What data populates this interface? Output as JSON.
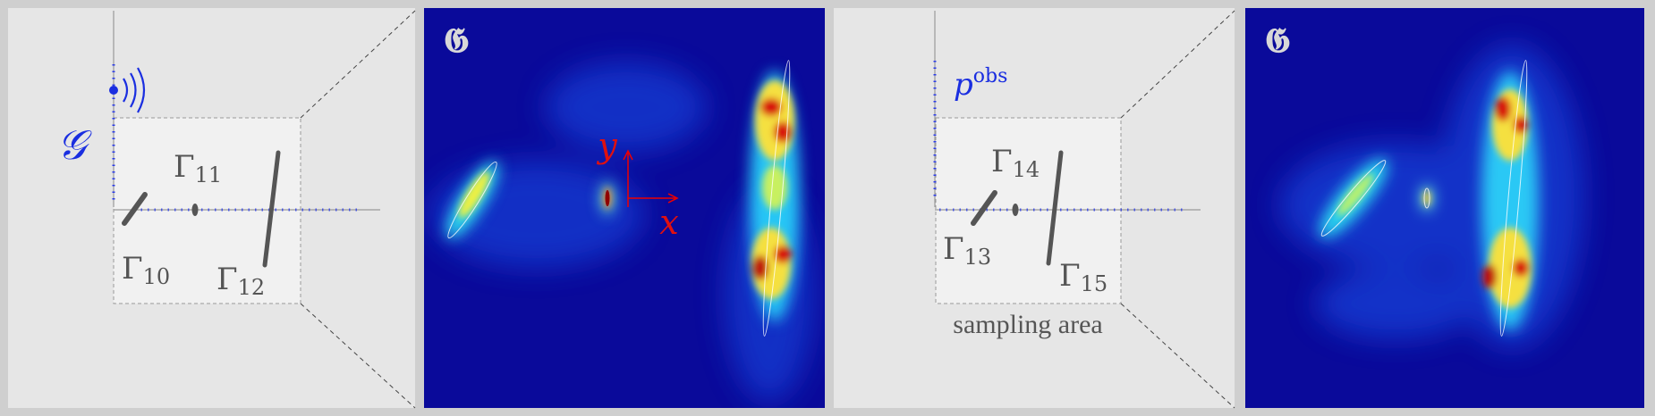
{
  "panel_left": {
    "source_label": "𝒢",
    "obstacles": [
      {
        "symbol": "Γ",
        "index": "10"
      },
      {
        "symbol": "Γ",
        "index": "11"
      },
      {
        "symbol": "Γ",
        "index": "12"
      }
    ]
  },
  "heatmap_left": {
    "icon": "𝕲",
    "axis_y": "y",
    "axis_x": "x"
  },
  "panel_right": {
    "observation_symbol": "p",
    "observation_sup": "obs",
    "obstacles": [
      {
        "symbol": "Γ",
        "index": "13"
      },
      {
        "symbol": "Γ",
        "index": "14"
      },
      {
        "symbol": "Γ",
        "index": "15"
      }
    ],
    "sampling_caption": "sampling area"
  },
  "heatmap_right": {
    "icon": "𝕲"
  }
}
